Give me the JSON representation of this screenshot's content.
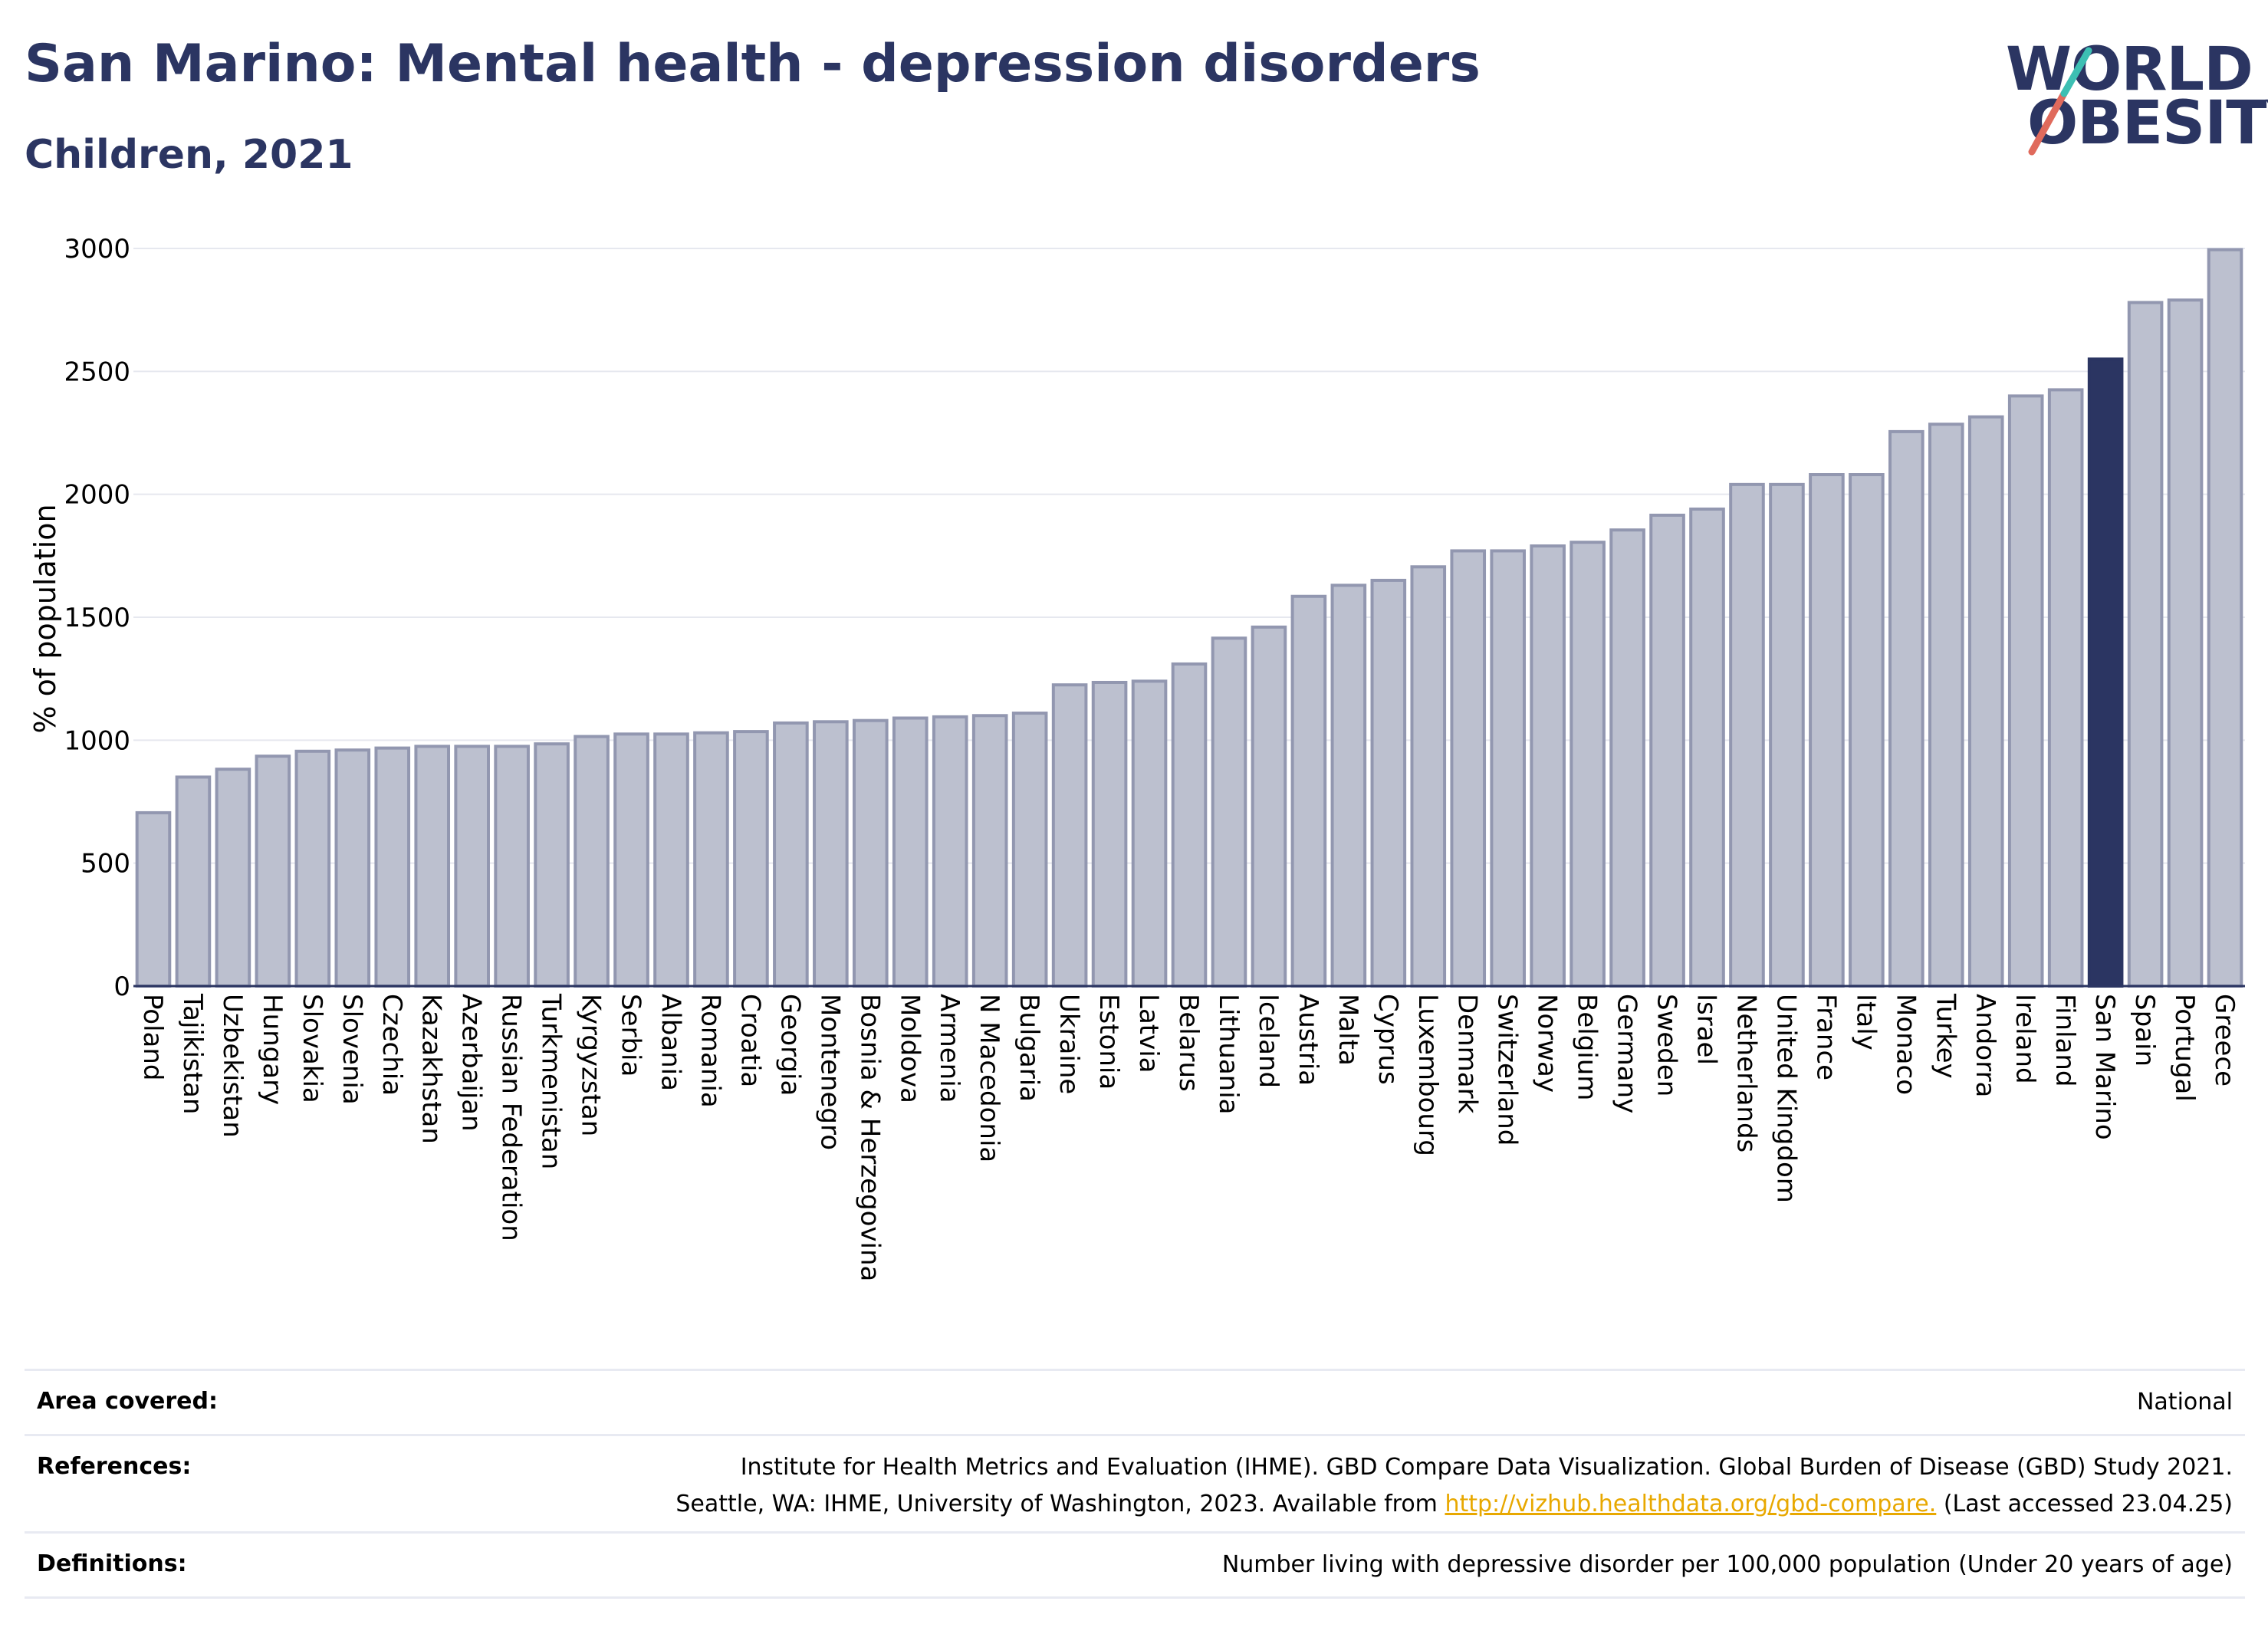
{
  "header": {
    "title": "San Marino: Mental health - depression disorders",
    "subtitle": "Children, 2021"
  },
  "logo": {
    "line1": "WORLD",
    "line2": "OBESITY"
  },
  "chart_data": {
    "type": "bar",
    "ylabel": "% of population",
    "xlabel": "",
    "ylim": [
      0,
      3000
    ],
    "yticks": [
      0,
      500,
      1000,
      1500,
      2000,
      2500,
      3000
    ],
    "grid": true,
    "highlight": "San Marino",
    "colors": {
      "bar": "#bcc0cf",
      "bar_border": "#9297b0",
      "highlight": "#2b3562",
      "grid": "#e6e8ef",
      "axis": "#2b3562"
    },
    "categories": [
      "Poland",
      "Tajikistan",
      "Uzbekistan",
      "Hungary",
      "Slovakia",
      "Slovenia",
      "Czechia",
      "Kazakhstan",
      "Azerbaijan",
      "Russian Federation",
      "Turkmenistan",
      "Kyrgyzstan",
      "Serbia",
      "Albania",
      "Romania",
      "Croatia",
      "Georgia",
      "Montenegro",
      "Bosnia & Herzegovina",
      "Moldova",
      "Armenia",
      "N Macedonia",
      "Bulgaria",
      "Ukraine",
      "Estonia",
      "Latvia",
      "Belarus",
      "Lithuania",
      "Iceland",
      "Austria",
      "Malta",
      "Cyprus",
      "Luxembourg",
      "Denmark",
      "Switzerland",
      "Norway",
      "Belgium",
      "Germany",
      "Sweden",
      "Israel",
      "Netherlands",
      "United Kingdom",
      "France",
      "Italy",
      "Monaco",
      "Turkey",
      "Andorra",
      "Ireland",
      "Finland",
      "San Marino",
      "Spain",
      "Portugal",
      "Greece"
    ],
    "values": [
      705,
      850,
      882,
      935,
      955,
      960,
      968,
      975,
      975,
      975,
      985,
      1015,
      1025,
      1025,
      1030,
      1035,
      1070,
      1075,
      1080,
      1090,
      1095,
      1100,
      1110,
      1225,
      1235,
      1240,
      1310,
      1415,
      1460,
      1585,
      1630,
      1650,
      1705,
      1770,
      1770,
      1790,
      1805,
      1855,
      1915,
      1940,
      2040,
      2040,
      2080,
      2080,
      2255,
      2285,
      2315,
      2400,
      2425,
      2550,
      2780,
      2790,
      2995
    ]
  },
  "meta": {
    "area_label": "Area covered:",
    "area_value": "National",
    "references_label": "References:",
    "references_line1": "Institute for Health Metrics and Evaluation (IHME). GBD Compare Data Visualization. Global Burden of Disease (GBD) Study 2021.",
    "references_line2_pre": "Seattle, WA: IHME, University of Washington, 2023. Available from ",
    "references_link": "http://vizhub.healthdata.org/gbd-compare.",
    "references_line2_post": " (Last accessed 23.04.25)",
    "definitions_label": "Definitions:",
    "definitions_value": "Number living with depressive disorder per 100,000 population (Under 20 years of age)"
  }
}
